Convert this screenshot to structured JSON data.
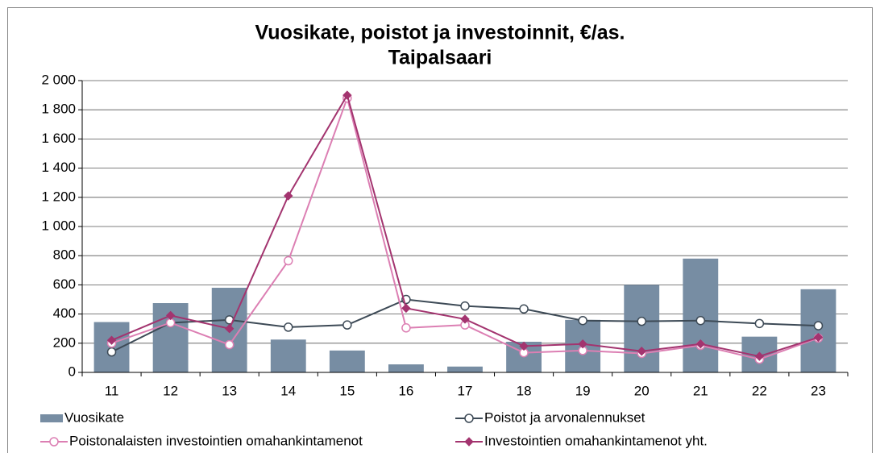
{
  "chart_data": {
    "type": "combo",
    "title": "Vuosikate, poistot ja investoinnit, €/as.",
    "subtitle": "Taipalsaari",
    "categories": [
      "11",
      "12",
      "13",
      "14",
      "15",
      "16",
      "17",
      "18",
      "19",
      "20",
      "21",
      "22",
      "23"
    ],
    "ylim": [
      0,
      2000
    ],
    "yticks": [
      0,
      200,
      400,
      600,
      800,
      {
        "value": 1000,
        "label": "1 000"
      },
      {
        "value": 1200,
        "label": "1 200"
      },
      {
        "value": 1400,
        "label": "1 400"
      },
      {
        "value": 1600,
        "label": "1 600"
      },
      {
        "value": 1800,
        "label": "1 800"
      },
      {
        "value": 2000,
        "label": "2 000"
      }
    ],
    "grid": true,
    "legend": "bottom",
    "series": [
      {
        "name": "Vuosikate",
        "type": "bar",
        "color": "#778da3",
        "values": [
          345,
          475,
          580,
          225,
          150,
          55,
          40,
          210,
          360,
          600,
          780,
          245,
          570
        ]
      },
      {
        "name": "Poistot ja arvonalennukset",
        "type": "line",
        "marker": "circle",
        "color": "#3d4a56",
        "values": [
          140,
          340,
          360,
          310,
          325,
          500,
          455,
          435,
          355,
          350,
          355,
          335,
          320
        ]
      },
      {
        "name": "Poistonalaisten investointien omahankintamenot",
        "type": "line",
        "marker": "circle",
        "color": "#dc7fb3",
        "values": [
          200,
          340,
          190,
          765,
          1880,
          305,
          325,
          135,
          150,
          130,
          185,
          90,
          235
        ]
      },
      {
        "name": "Investointien omahankintamenot yht.",
        "type": "line",
        "marker": "diamond",
        "color": "#a3346f",
        "values": [
          220,
          390,
          300,
          1210,
          1900,
          440,
          365,
          180,
          195,
          145,
          195,
          110,
          240
        ]
      }
    ]
  }
}
